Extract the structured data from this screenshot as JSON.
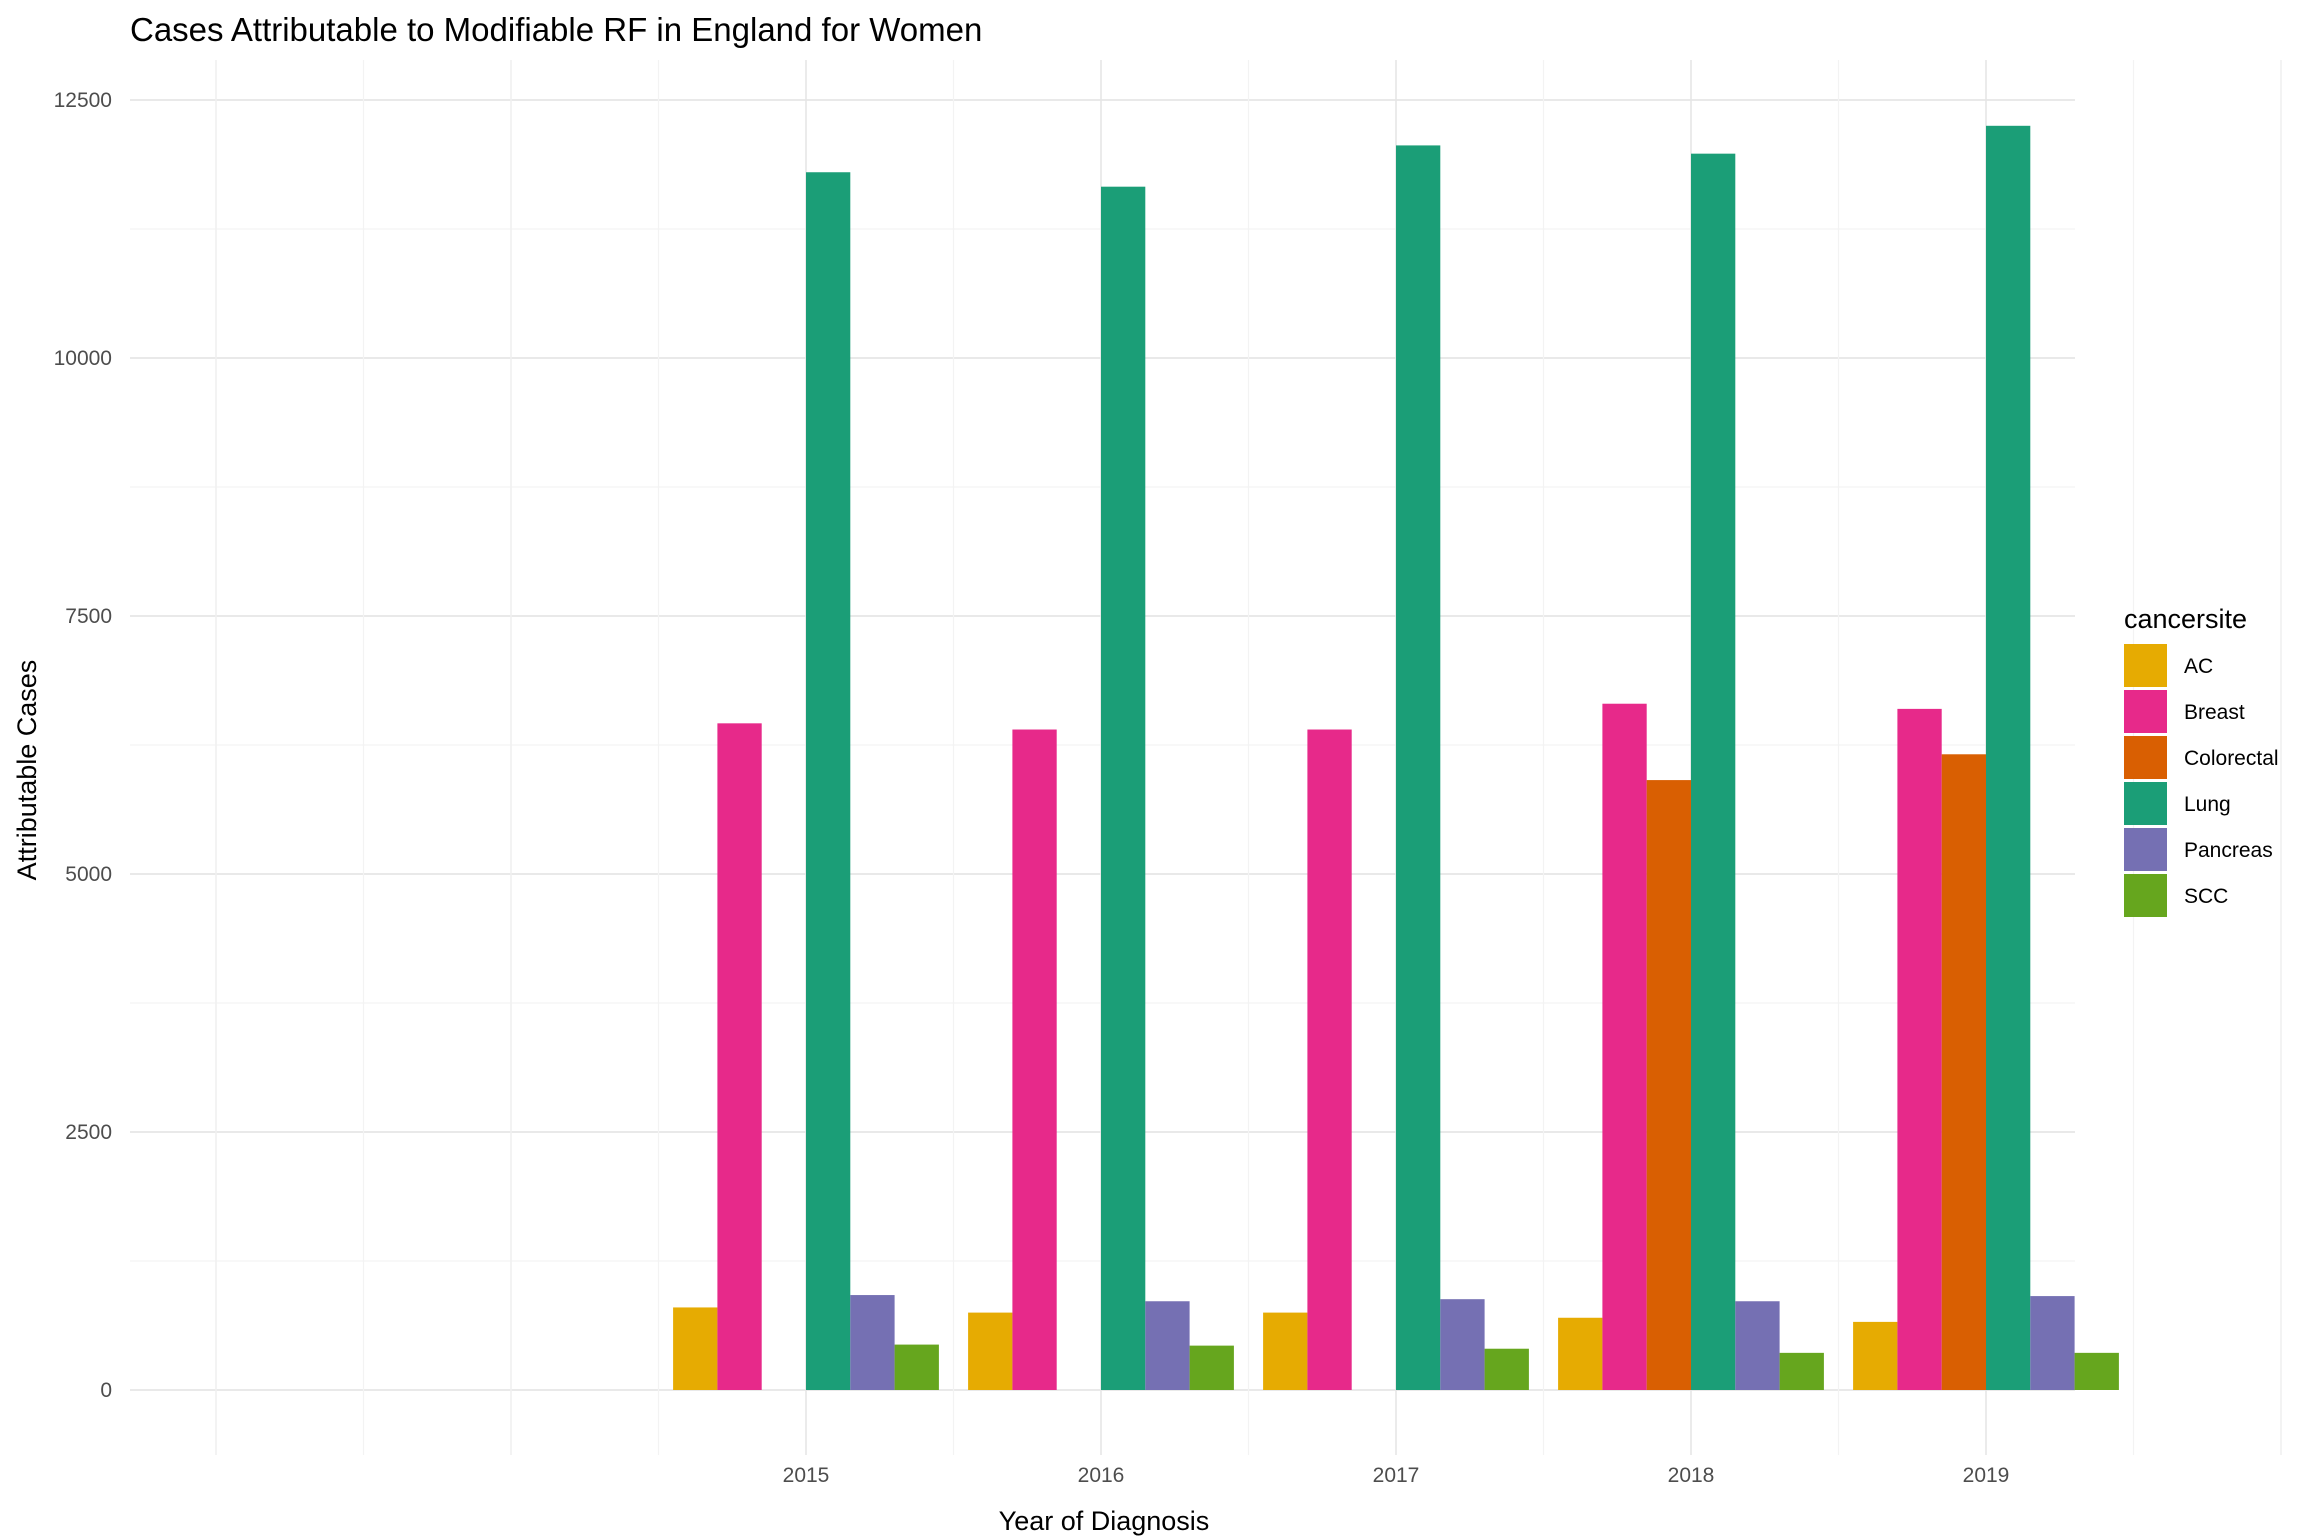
{
  "chart_data": {
    "type": "bar",
    "title": "Cases Attributable to Modifiable RF in England for Women",
    "xlabel": "Year of Diagnosis",
    "ylabel": "Attributable Cases",
    "categories": [
      "2015",
      "2016",
      "2017",
      "2018",
      "2019"
    ],
    "ylim": [
      0,
      12500
    ],
    "yticks": [
      0,
      2500,
      5000,
      7500,
      10000,
      12500
    ],
    "grid": true,
    "legend": {
      "title": "cancersite",
      "placement": "right"
    },
    "series": [
      {
        "name": "AC",
        "color": "#E6AB02",
        "values": [
          800,
          750,
          750,
          700,
          660
        ]
      },
      {
        "name": "Breast",
        "color": "#E7298A",
        "values": [
          6460,
          6400,
          6400,
          6650,
          6600
        ]
      },
      {
        "name": "Colorectal",
        "color": "#D95F02",
        "values": [
          null,
          null,
          null,
          5910,
          6160
        ]
      },
      {
        "name": "Lung",
        "color": "#1B9E77",
        "values": [
          11800,
          11660,
          12060,
          11980,
          12250
        ]
      },
      {
        "name": "Pancreas",
        "color": "#7570B3",
        "values": [
          920,
          860,
          880,
          860,
          910
        ]
      },
      {
        "name": "SCC",
        "color": "#66A61E",
        "values": [
          440,
          430,
          400,
          360,
          360
        ]
      }
    ]
  }
}
